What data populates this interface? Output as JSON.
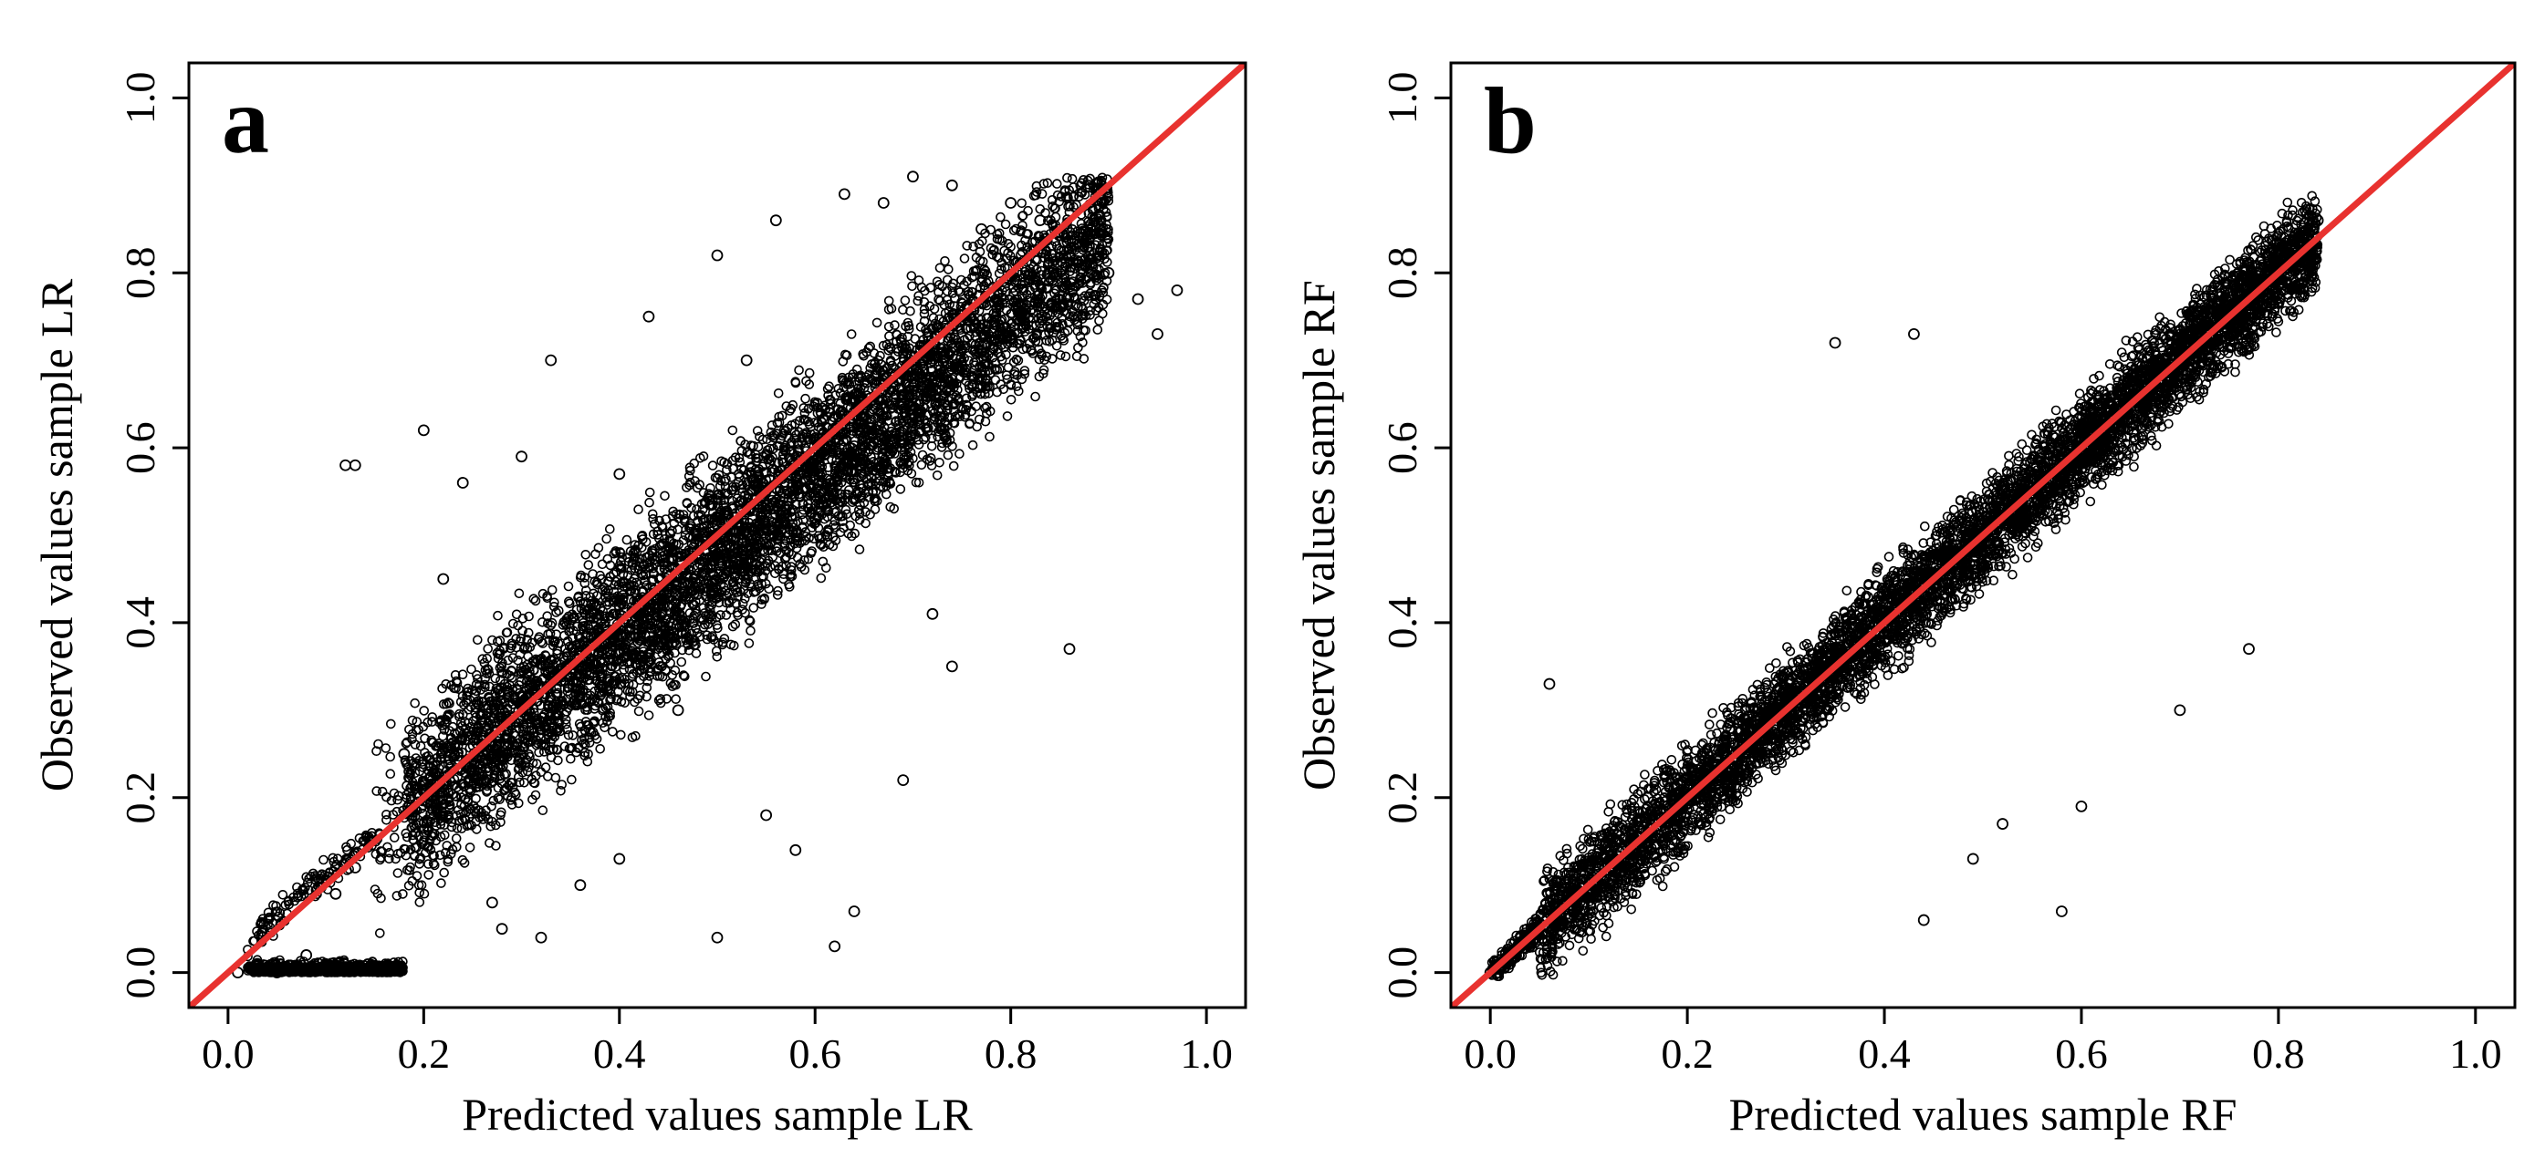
{
  "chart_data": [
    {
      "type": "scatter",
      "panel_label": "a",
      "title": "",
      "xlabel": "Predicted values sample LR",
      "ylabel": "Observed values sample LR",
      "xlim": [
        -0.04,
        1.04
      ],
      "ylim": [
        -0.04,
        1.04
      ],
      "xticks": [
        0.0,
        0.2,
        0.4,
        0.6,
        0.8,
        1.0
      ],
      "yticks": [
        0.0,
        0.2,
        0.4,
        0.6,
        0.8,
        1.0
      ],
      "tick_labels": [
        "0.0",
        "0.2",
        "0.4",
        "0.6",
        "0.8",
        "1.0"
      ],
      "reference_line": {
        "kind": "identity",
        "slope": 1,
        "intercept": 0,
        "color": "#e8322f"
      },
      "marker_color": "#000000",
      "trend": {
        "slope": 0.92,
        "intercept": 0.02,
        "spread": 0.11
      },
      "x": [
        0.01,
        0.03,
        0.05,
        0.08,
        0.11,
        0.13,
        0.18,
        0.2,
        0.22,
        0.24,
        0.27,
        0.3,
        0.33,
        0.36,
        0.4,
        0.43,
        0.46,
        0.5,
        0.53,
        0.56,
        0.6,
        0.63,
        0.67,
        0.7,
        0.74,
        0.77,
        0.8,
        0.83,
        0.86,
        0.88,
        0.9,
        0.93,
        0.95,
        0.97,
        0.12,
        0.13,
        0.28,
        0.32,
        0.55,
        0.62,
        0.64,
        0.69,
        0.74,
        0.86,
        0.4,
        0.5,
        0.58,
        0.72
      ],
      "y": [
        0.0,
        0.01,
        0.0,
        0.02,
        0.09,
        0.12,
        0.25,
        0.62,
        0.45,
        0.56,
        0.08,
        0.59,
        0.7,
        0.1,
        0.57,
        0.75,
        0.3,
        0.82,
        0.7,
        0.86,
        0.52,
        0.89,
        0.88,
        0.91,
        0.9,
        0.85,
        0.88,
        0.86,
        0.82,
        0.83,
        0.8,
        0.77,
        0.73,
        0.78,
        0.58,
        0.58,
        0.05,
        0.04,
        0.18,
        0.03,
        0.07,
        0.22,
        0.35,
        0.37,
        0.13,
        0.04,
        0.14,
        0.41
      ]
    },
    {
      "type": "scatter",
      "panel_label": "b",
      "title": "",
      "xlabel": "Predicted values sample RF",
      "ylabel": "Observed values sample RF",
      "xlim": [
        -0.04,
        1.04
      ],
      "ylim": [
        -0.04,
        1.04
      ],
      "xticks": [
        0.0,
        0.2,
        0.4,
        0.6,
        0.8,
        1.0
      ],
      "yticks": [
        0.0,
        0.2,
        0.4,
        0.6,
        0.8,
        1.0
      ],
      "tick_labels": [
        "0.0",
        "0.2",
        "0.4",
        "0.6",
        "0.8",
        "1.0"
      ],
      "reference_line": {
        "kind": "identity",
        "slope": 1,
        "intercept": 0,
        "color": "#e8322f"
      },
      "marker_color": "#000000",
      "trend": {
        "slope": 1.0,
        "intercept": 0.0,
        "spread": 0.06
      },
      "x": [
        0.0,
        0.02,
        0.04,
        0.06,
        0.08,
        0.1,
        0.13,
        0.16,
        0.19,
        0.22,
        0.26,
        0.3,
        0.34,
        0.38,
        0.42,
        0.46,
        0.5,
        0.54,
        0.58,
        0.62,
        0.66,
        0.7,
        0.73,
        0.76,
        0.79,
        0.81,
        0.83,
        0.84,
        0.06,
        0.35,
        0.43,
        0.58,
        0.7,
        0.77,
        0.49,
        0.52,
        0.6,
        0.44
      ],
      "y": [
        0.0,
        0.01,
        0.03,
        0.05,
        0.09,
        0.12,
        0.14,
        0.2,
        0.18,
        0.25,
        0.27,
        0.31,
        0.34,
        0.4,
        0.42,
        0.48,
        0.5,
        0.55,
        0.58,
        0.62,
        0.66,
        0.71,
        0.74,
        0.78,
        0.8,
        0.82,
        0.84,
        0.86,
        0.33,
        0.72,
        0.73,
        0.07,
        0.3,
        0.37,
        0.13,
        0.17,
        0.19,
        0.06
      ]
    }
  ]
}
